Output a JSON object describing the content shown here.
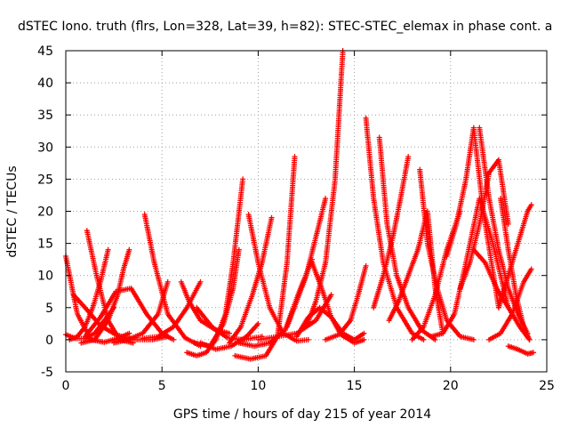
{
  "chart_data": {
    "type": "scatter",
    "title": "dSTEC Iono. truth (flrs, Lon=328, Lat=39, h=82): STEC-STEC_elemax in phase cont. a",
    "xlabel": "GPS time / hours of day 215 of year 2014",
    "ylabel": "dSTEC  / TECUs",
    "xlim": [
      0,
      25
    ],
    "ylim": [
      -5,
      45
    ],
    "xticks": [
      "0",
      "5",
      "10",
      "15",
      "20",
      "25"
    ],
    "yticks": [
      "-5",
      "0",
      "5",
      "10",
      "15",
      "20",
      "25",
      "30",
      "35",
      "40",
      "45"
    ],
    "grid": true,
    "marker": "+",
    "color": "#ff0000",
    "arcs": [
      {
        "x": [
          0.0,
          0.6,
          1.3,
          2.0,
          2.7,
          3.3
        ],
        "y": [
          13.0,
          4.0,
          0.0,
          -0.4,
          0.2,
          1.0
        ]
      },
      {
        "x": [
          0.0,
          0.5,
          1.0,
          1.5,
          2.0,
          2.5
        ],
        "y": [
          0.8,
          0.2,
          0.2,
          1.0,
          3.0,
          5.0
        ]
      },
      {
        "x": [
          0.4,
          1.0,
          1.8,
          2.6,
          3.5,
          4.5,
          5.3
        ],
        "y": [
          7.0,
          5.0,
          2.2,
          0.8,
          0.0,
          0.0,
          0.5
        ]
      },
      {
        "x": [
          0.2,
          0.6,
          1.0,
          1.4,
          1.8,
          2.2
        ],
        "y": [
          0.0,
          0.5,
          2.0,
          5.0,
          9.0,
          14.0
        ]
      },
      {
        "x": [
          1.1,
          1.6,
          2.2,
          2.8,
          3.5
        ],
        "y": [
          17.0,
          10.0,
          3.0,
          0.0,
          -0.5
        ]
      },
      {
        "x": [
          0.8,
          1.5,
          2.2,
          2.7,
          3.0,
          3.3
        ],
        "y": [
          -0.5,
          0.0,
          3.0,
          7.0,
          11.0,
          14.0
        ]
      },
      {
        "x": [
          1.0,
          1.8,
          2.6,
          3.4,
          4.2,
          5.0,
          5.6
        ],
        "y": [
          0.5,
          3.5,
          7.5,
          8.0,
          4.0,
          1.0,
          0.0
        ]
      },
      {
        "x": [
          2.5,
          3.2,
          4.0,
          4.8,
          5.3
        ],
        "y": [
          -0.5,
          0.0,
          1.0,
          4.0,
          9.0
        ]
      },
      {
        "x": [
          4.1,
          4.6,
          5.3,
          6.2,
          7.0
        ],
        "y": [
          19.5,
          12.0,
          4.0,
          0.3,
          -1.0
        ]
      },
      {
        "x": [
          4.0,
          4.8,
          5.6,
          6.3,
          7.0
        ],
        "y": [
          0.2,
          0.5,
          2.0,
          5.0,
          9.0
        ]
      },
      {
        "x": [
          6.0,
          6.4,
          7.0,
          7.8,
          8.5
        ],
        "y": [
          9.0,
          6.0,
          3.0,
          1.5,
          1.0
        ]
      },
      {
        "x": [
          6.3,
          6.8,
          7.3,
          7.8,
          8.3,
          8.7,
          9.2
        ],
        "y": [
          -2.0,
          -2.5,
          -2.0,
          0.0,
          4.0,
          12.0,
          25.0
        ]
      },
      {
        "x": [
          6.7,
          7.5,
          8.2,
          8.7,
          9.0
        ],
        "y": [
          -0.5,
          -1.0,
          2.5,
          8.0,
          14.0
        ]
      },
      {
        "x": [
          7.0,
          7.8,
          8.6,
          9.4,
          10.0
        ],
        "y": [
          -0.5,
          -1.5,
          -1.0,
          0.5,
          2.5
        ]
      },
      {
        "x": [
          6.8,
          7.6,
          8.4,
          9.2,
          10.2
        ],
        "y": [
          5.0,
          2.0,
          0.3,
          0.0,
          0.5
        ]
      },
      {
        "x": [
          9.5,
          10.0,
          10.6,
          11.3,
          12.0,
          12.6
        ],
        "y": [
          19.5,
          12.0,
          5.0,
          1.0,
          -0.2,
          0.0
        ]
      },
      {
        "x": [
          8.5,
          9.1,
          9.7,
          10.2,
          10.7
        ],
        "y": [
          -0.5,
          2.0,
          7.0,
          12.0,
          19.0
        ]
      },
      {
        "x": [
          8.8,
          9.6,
          10.4,
          11.0,
          11.5,
          11.9
        ],
        "y": [
          -2.5,
          -3.0,
          -2.5,
          0.5,
          12.0,
          28.5
        ]
      },
      {
        "x": [
          9.0,
          9.8,
          10.6,
          11.4,
          12.2,
          12.8
        ],
        "y": [
          -0.5,
          -1.0,
          -0.5,
          1.5,
          8.0,
          12.5
        ]
      },
      {
        "x": [
          10.0,
          11.0,
          12.0,
          13.0,
          13.8
        ],
        "y": [
          0.0,
          0.5,
          1.0,
          3.0,
          7.0
        ]
      },
      {
        "x": [
          12.8,
          13.3,
          13.8,
          14.3,
          15.0,
          15.5
        ],
        "y": [
          12.0,
          8.0,
          3.5,
          0.8,
          -0.5,
          0.0
        ]
      },
      {
        "x": [
          12.5,
          13.0,
          13.5,
          14.0,
          14.4
        ],
        "y": [
          2.0,
          6.0,
          12.0,
          25.0,
          45.0
        ]
      },
      {
        "x": [
          11.5,
          12.0,
          12.5,
          13.0,
          13.5
        ],
        "y": [
          2.0,
          6.0,
          10.0,
          16.0,
          22.0
        ]
      },
      {
        "x": [
          12.0,
          12.6,
          13.2,
          13.8,
          14.4,
          15.0,
          15.5
        ],
        "y": [
          0.5,
          3.5,
          5.0,
          3.5,
          1.0,
          0.0,
          1.0
        ]
      },
      {
        "x": [
          13.5,
          14.2,
          14.8,
          15.2,
          15.6
        ],
        "y": [
          0.0,
          0.8,
          3.0,
          7.0,
          11.5
        ]
      },
      {
        "x": [
          15.6,
          16.0,
          16.5,
          17.2,
          18.0,
          18.6
        ],
        "y": [
          34.5,
          22.0,
          12.0,
          5.0,
          1.0,
          0.0
        ]
      },
      {
        "x": [
          16.3,
          16.7,
          17.2,
          17.8,
          18.5,
          19.2
        ],
        "y": [
          31.5,
          18.0,
          10.0,
          5.0,
          1.5,
          0.0
        ]
      },
      {
        "x": [
          16.0,
          16.5,
          17.0,
          17.4,
          17.8
        ],
        "y": [
          5.0,
          10.0,
          16.0,
          22.0,
          28.5
        ]
      },
      {
        "x": [
          16.8,
          17.3,
          17.8,
          18.3,
          18.8,
          19.2,
          19.6
        ],
        "y": [
          3.0,
          6.0,
          10.0,
          14.0,
          20.0,
          8.0,
          1.0
        ]
      },
      {
        "x": [
          18.0,
          18.6,
          19.2,
          19.8,
          20.5
        ],
        "y": [
          0.0,
          2.0,
          7.0,
          14.0,
          20.0
        ]
      },
      {
        "x": [
          18.4,
          18.8,
          19.3,
          19.8,
          20.5,
          21.2
        ],
        "y": [
          26.5,
          15.0,
          8.0,
          3.0,
          0.5,
          0.0
        ]
      },
      {
        "x": [
          19.0,
          19.6,
          20.2,
          20.8,
          21.5,
          22.2,
          23.0
        ],
        "y": [
          0.5,
          1.0,
          4.0,
          12.0,
          22.0,
          15.0,
          5.0
        ]
      },
      {
        "x": [
          19.8,
          20.3,
          20.8,
          21.2,
          21.7,
          22.5
        ],
        "y": [
          13.0,
          18.0,
          25.0,
          33.0,
          20.0,
          5.0
        ]
      },
      {
        "x": [
          20.5,
          21.0,
          21.5,
          22.0,
          22.5,
          23.0
        ],
        "y": [
          8.0,
          12.0,
          18.0,
          26.0,
          28.0,
          18.0
        ]
      },
      {
        "x": [
          21.5,
          22.0,
          22.5,
          23.0,
          23.5,
          24.0
        ],
        "y": [
          33.0,
          22.0,
          14.0,
          8.0,
          4.0,
          1.0
        ]
      },
      {
        "x": [
          21.2,
          21.8,
          22.4,
          23.0,
          23.6,
          24.1
        ],
        "y": [
          14.0,
          12.0,
          8.0,
          5.0,
          2.0,
          0.0
        ]
      },
      {
        "x": [
          22.6,
          23.0,
          23.4,
          23.8,
          24.1
        ],
        "y": [
          22.0,
          14.0,
          7.0,
          2.0,
          0.0
        ]
      },
      {
        "x": [
          22.0,
          22.6,
          23.2,
          23.8,
          24.2
        ],
        "y": [
          0.0,
          1.0,
          4.0,
          9.0,
          11.0
        ]
      },
      {
        "x": [
          22.5,
          23.0,
          23.5,
          24.0,
          24.2
        ],
        "y": [
          5.0,
          10.0,
          15.0,
          20.0,
          21.0
        ]
      },
      {
        "x": [
          23.0,
          23.5,
          24.0,
          24.3
        ],
        "y": [
          -1.0,
          -1.5,
          -2.2,
          -2.0
        ]
      }
    ]
  }
}
